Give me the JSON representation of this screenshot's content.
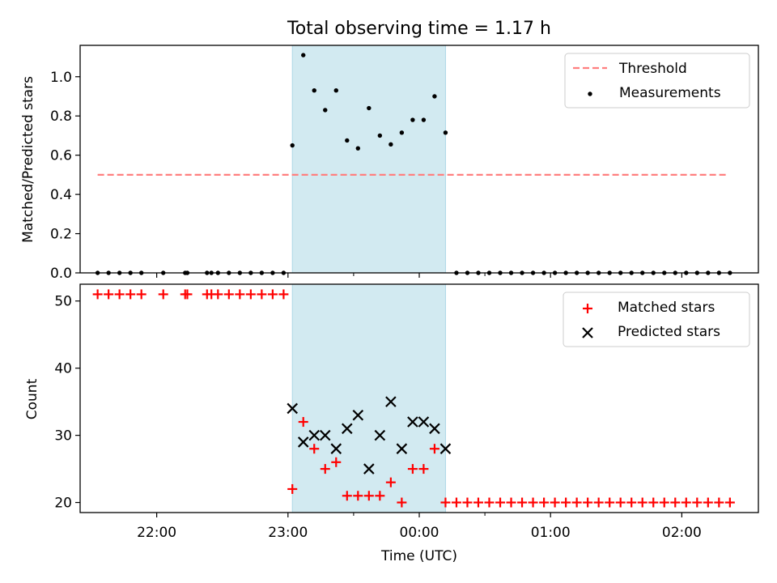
{
  "chart_data": {
    "title": "Total observing time = 1.17 h",
    "xlabel": "Time (UTC)",
    "xlim": [
      "21:25",
      "02:35"
    ],
    "xticks": [
      "22:00",
      "23:00",
      "00:00",
      "01:00",
      "02:00"
    ],
    "minor_xticks": [
      "23:30",
      "00:30"
    ],
    "highlight_span": {
      "start": "23:02",
      "end": "00:12",
      "color": "#add8e6"
    },
    "panels": [
      {
        "type": "scatter",
        "ylabel": "Matched/Predicted stars",
        "ylim": [
          0,
          1.16
        ],
        "yticks": [
          "0.0",
          "0.2",
          "0.4",
          "0.6",
          "0.8",
          "1.0"
        ],
        "legend": [
          "Threshold",
          "Measurements"
        ],
        "legend_position": "upper right",
        "threshold": {
          "name": "Threshold",
          "value": 0.5,
          "x_start": "21:33",
          "x_end": "02:21",
          "color": "#ff7f7f",
          "style": "dashed"
        },
        "series": [
          {
            "name": "Measurements",
            "color": "#000000",
            "marker": "dot",
            "points": [
              [
                "21:33",
                0
              ],
              [
                "21:38",
                0
              ],
              [
                "21:43",
                0
              ],
              [
                "21:48",
                0
              ],
              [
                "21:53",
                0
              ],
              [
                "22:03",
                0
              ],
              [
                "22:13",
                0
              ],
              [
                "22:14",
                0
              ],
              [
                "22:23",
                0
              ],
              [
                "22:25",
                0
              ],
              [
                "22:28",
                0
              ],
              [
                "22:33",
                0
              ],
              [
                "22:38",
                0
              ],
              [
                "22:43",
                0
              ],
              [
                "22:48",
                0
              ],
              [
                "22:53",
                0
              ],
              [
                "22:58",
                0
              ],
              [
                "23:02",
                0.65
              ],
              [
                "23:07",
                1.11
              ],
              [
                "23:12",
                0.93
              ],
              [
                "23:17",
                0.83
              ],
              [
                "23:22",
                0.93
              ],
              [
                "23:27",
                0.675
              ],
              [
                "23:32",
                0.635
              ],
              [
                "23:37",
                0.84
              ],
              [
                "23:42",
                0.7
              ],
              [
                "23:47",
                0.655
              ],
              [
                "23:52",
                0.715
              ],
              [
                "23:57",
                0.78
              ],
              [
                "00:02",
                0.78
              ],
              [
                "00:07",
                0.9
              ],
              [
                "00:12",
                0.715
              ],
              [
                "00:17",
                0
              ],
              [
                "00:22",
                0
              ],
              [
                "00:27",
                0
              ],
              [
                "00:32",
                0
              ],
              [
                "00:37",
                0
              ],
              [
                "00:42",
                0
              ],
              [
                "00:47",
                0
              ],
              [
                "00:52",
                0
              ],
              [
                "00:57",
                0
              ],
              [
                "01:02",
                0
              ],
              [
                "01:07",
                0
              ],
              [
                "01:12",
                0
              ],
              [
                "01:17",
                0
              ],
              [
                "01:22",
                0
              ],
              [
                "01:27",
                0
              ],
              [
                "01:32",
                0
              ],
              [
                "01:37",
                0
              ],
              [
                "01:42",
                0
              ],
              [
                "01:47",
                0
              ],
              [
                "01:52",
                0
              ],
              [
                "01:57",
                0
              ],
              [
                "02:02",
                0
              ],
              [
                "02:07",
                0
              ],
              [
                "02:12",
                0
              ],
              [
                "02:17",
                0
              ],
              [
                "02:22",
                0
              ]
            ]
          }
        ]
      },
      {
        "type": "scatter",
        "ylabel": "Count",
        "ylim": [
          18.5,
          52.5
        ],
        "yticks": [
          "20",
          "30",
          "40",
          "50"
        ],
        "legend": [
          "Matched stars",
          "Predicted stars"
        ],
        "legend_position": "upper right",
        "series": [
          {
            "name": "Matched stars",
            "color": "#ff0000",
            "marker": "plus",
            "points": [
              [
                "21:33",
                51
              ],
              [
                "21:38",
                51
              ],
              [
                "21:43",
                51
              ],
              [
                "21:48",
                51
              ],
              [
                "21:53",
                51
              ],
              [
                "22:03",
                51
              ],
              [
                "22:13",
                51
              ],
              [
                "22:14",
                51
              ],
              [
                "22:23",
                51
              ],
              [
                "22:25",
                51
              ],
              [
                "22:28",
                51
              ],
              [
                "22:33",
                51
              ],
              [
                "22:38",
                51
              ],
              [
                "22:43",
                51
              ],
              [
                "22:48",
                51
              ],
              [
                "22:53",
                51
              ],
              [
                "22:58",
                51
              ],
              [
                "23:02",
                22
              ],
              [
                "23:07",
                32
              ],
              [
                "23:12",
                28
              ],
              [
                "23:17",
                25
              ],
              [
                "23:22",
                26
              ],
              [
                "23:27",
                21
              ],
              [
                "23:32",
                21
              ],
              [
                "23:37",
                21
              ],
              [
                "23:42",
                21
              ],
              [
                "23:47",
                23
              ],
              [
                "23:52",
                20
              ],
              [
                "23:57",
                25
              ],
              [
                "00:02",
                25
              ],
              [
                "00:07",
                28
              ],
              [
                "00:12",
                20
              ],
              [
                "00:17",
                20
              ],
              [
                "00:22",
                20
              ],
              [
                "00:27",
                20
              ],
              [
                "00:32",
                20
              ],
              [
                "00:37",
                20
              ],
              [
                "00:42",
                20
              ],
              [
                "00:47",
                20
              ],
              [
                "00:52",
                20
              ],
              [
                "00:57",
                20
              ],
              [
                "01:02",
                20
              ],
              [
                "01:07",
                20
              ],
              [
                "01:12",
                20
              ],
              [
                "01:17",
                20
              ],
              [
                "01:22",
                20
              ],
              [
                "01:27",
                20
              ],
              [
                "01:32",
                20
              ],
              [
                "01:37",
                20
              ],
              [
                "01:42",
                20
              ],
              [
                "01:47",
                20
              ],
              [
                "01:52",
                20
              ],
              [
                "01:57",
                20
              ],
              [
                "02:02",
                20
              ],
              [
                "02:07",
                20
              ],
              [
                "02:12",
                20
              ],
              [
                "02:17",
                20
              ],
              [
                "02:22",
                20
              ]
            ]
          },
          {
            "name": "Predicted stars",
            "color": "#000000",
            "marker": "cross",
            "points": [
              [
                "23:02",
                34
              ],
              [
                "23:07",
                29
              ],
              [
                "23:12",
                30
              ],
              [
                "23:17",
                30
              ],
              [
                "23:22",
                28
              ],
              [
                "23:27",
                31
              ],
              [
                "23:32",
                33
              ],
              [
                "23:37",
                25
              ],
              [
                "23:42",
                30
              ],
              [
                "23:47",
                35
              ],
              [
                "23:52",
                28
              ],
              [
                "23:57",
                32
              ],
              [
                "00:02",
                32
              ],
              [
                "00:07",
                31
              ],
              [
                "00:12",
                28
              ]
            ]
          }
        ]
      }
    ]
  }
}
